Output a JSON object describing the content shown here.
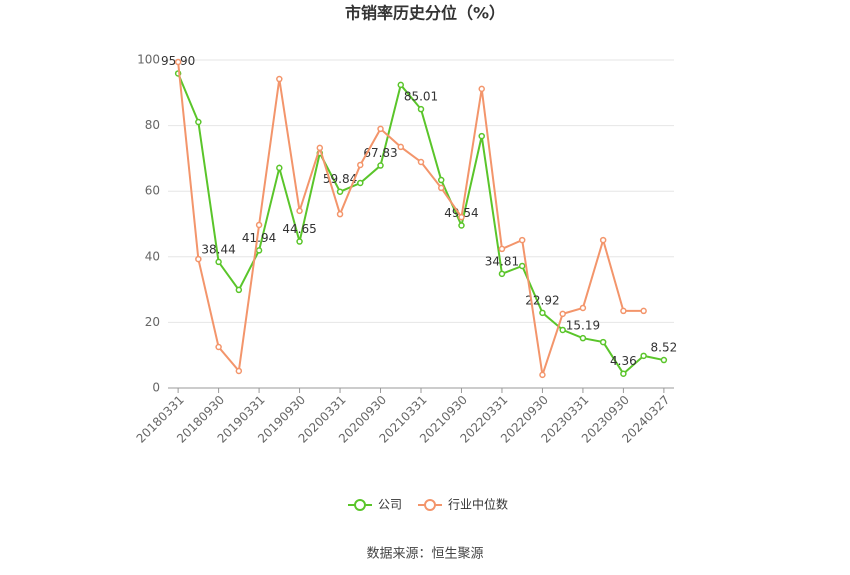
{
  "chart_data": {
    "type": "line",
    "title": "市销率历史分位（%）",
    "source": "数据来源：恒生聚源",
    "categories": [
      "20180331",
      null,
      "20180930",
      null,
      "20190331",
      null,
      "20190930",
      null,
      "20200331",
      null,
      "20200930",
      null,
      "20210331",
      null,
      "20210930",
      null,
      "20220331",
      null,
      "20220930",
      null,
      "20230331",
      null,
      "20230930",
      null,
      "20240327"
    ],
    "series": [
      {
        "name": "公司",
        "color": "#5ac52a",
        "values": [
          95.9,
          81.1,
          38.44,
          29.9,
          41.94,
          67.1,
          44.65,
          71.6,
          59.84,
          62.5,
          67.83,
          92.4,
          85.01,
          63.4,
          49.54,
          76.8,
          34.81,
          37.2,
          22.92,
          17.7,
          15.19,
          14.0,
          4.36,
          9.8,
          8.52
        ],
        "value_labels": [
          "95.90",
          null,
          "38.44",
          null,
          "41.94",
          null,
          "44.65",
          null,
          "59.84",
          null,
          "67.83",
          null,
          "85.01",
          null,
          "49.54",
          null,
          "34.81",
          null,
          "22.92",
          null,
          "15.19",
          null,
          "4.36",
          null,
          "8.52"
        ]
      },
      {
        "name": "行业中位数",
        "color": "#f3956b",
        "values": [
          99.4,
          39.3,
          12.5,
          5.2,
          49.7,
          94.2,
          54.0,
          73.2,
          53.0,
          68.0,
          79.0,
          73.5,
          68.9,
          61.0,
          52.1,
          91.2,
          42.4,
          45.1,
          4.0,
          22.6,
          24.4,
          45.1,
          23.5,
          23.5,
          null
        ]
      }
    ],
    "ylim": [
      0,
      100
    ],
    "yticks": [
      0,
      20,
      40,
      60,
      80,
      100
    ],
    "grid": true,
    "legend": "bottom"
  }
}
